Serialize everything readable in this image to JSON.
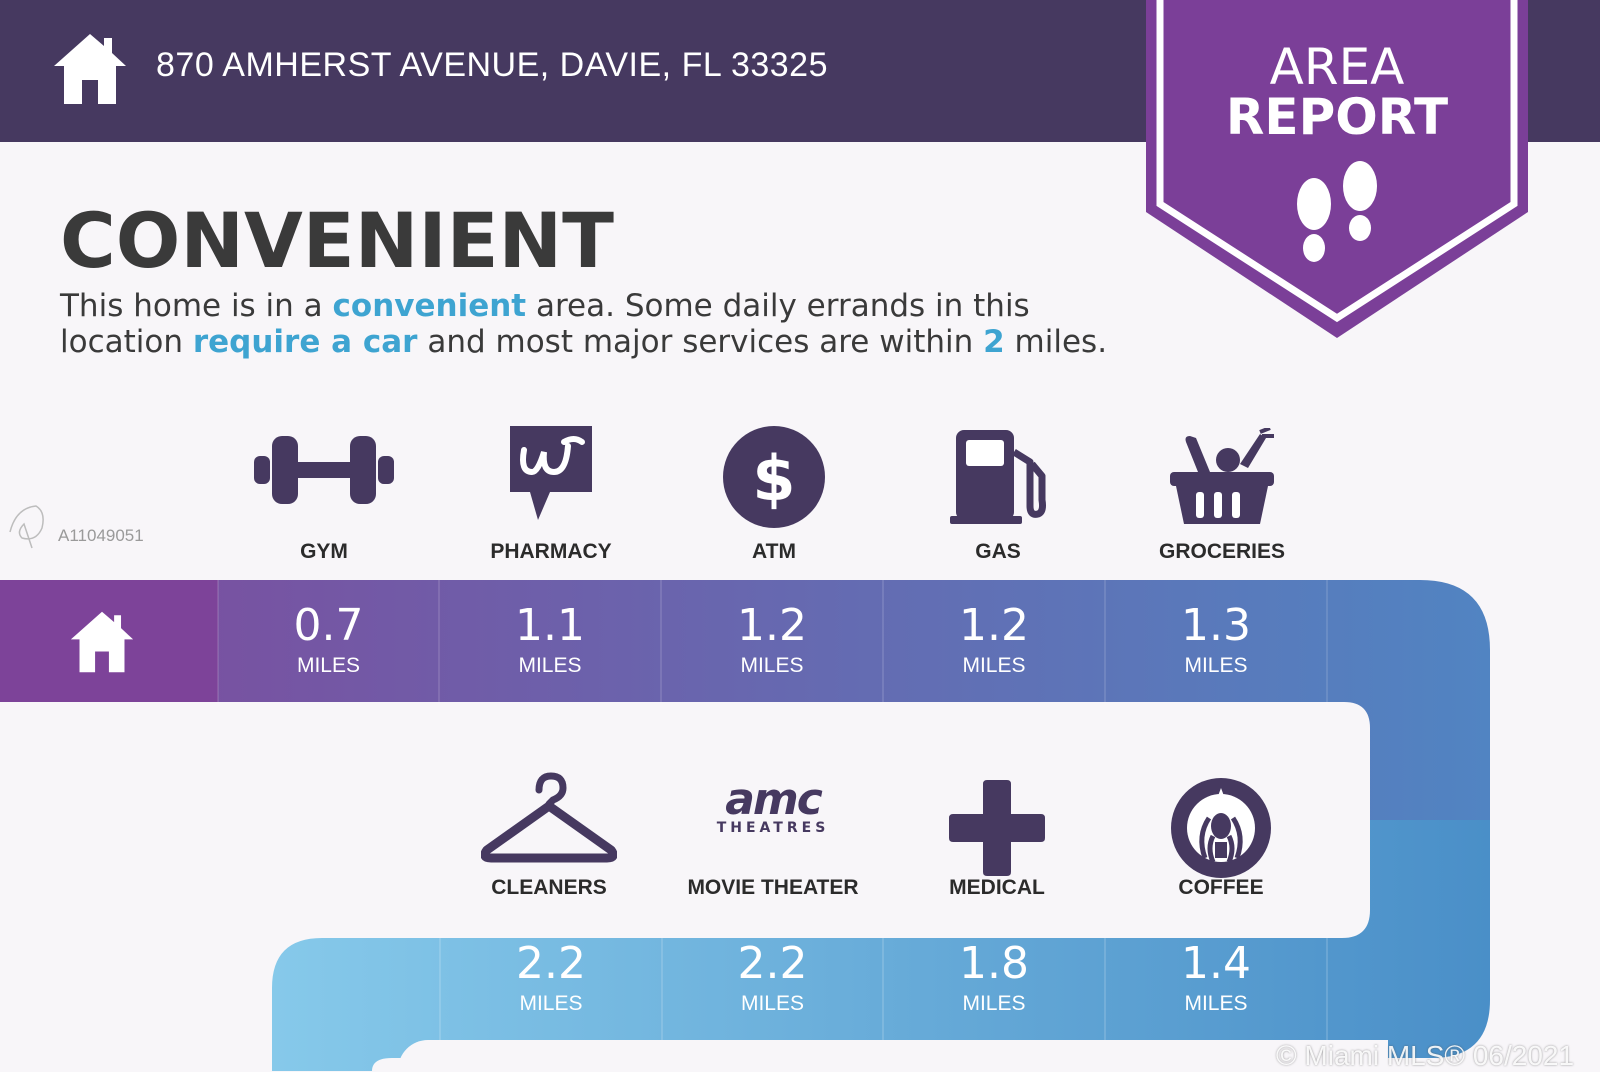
{
  "header": {
    "address": "870 AMHERST AVENUE, DAVIE, FL 33325",
    "badge_line1": "AREA",
    "badge_line2": "REPORT"
  },
  "title": "CONVENIENT",
  "description": {
    "part1": "This home is in a ",
    "hl1": "convenient",
    "part2": " area. Some daily errands in this location ",
    "hl2": "require a car",
    "part3": " and most major services are within ",
    "hl3": "2",
    "part4": " miles."
  },
  "watermark": {
    "id": "A11049051",
    "copyright": "© Miami MLS® 06/2021"
  },
  "amenities_row1": [
    {
      "label": "GYM",
      "distance": "0.7",
      "unit": "MILES",
      "icon": "dumbbell-icon"
    },
    {
      "label": "PHARMACY",
      "distance": "1.1",
      "unit": "MILES",
      "icon": "walgreens-logo"
    },
    {
      "label": "ATM",
      "distance": "1.2",
      "unit": "MILES",
      "icon": "dollar-icon"
    },
    {
      "label": "GAS",
      "distance": "1.2",
      "unit": "MILES",
      "icon": "gas-pump-icon"
    },
    {
      "label": "GROCERIES",
      "distance": "1.3",
      "unit": "MILES",
      "icon": "grocery-basket-icon"
    }
  ],
  "amenities_row2": [
    {
      "label": "CLEANERS",
      "distance": "2.2",
      "unit": "MILES",
      "icon": "hanger-icon"
    },
    {
      "label": "MOVIE THEATER",
      "distance": "2.2",
      "unit": "MILES",
      "icon": "amc-logo"
    },
    {
      "label": "MEDICAL",
      "distance": "1.8",
      "unit": "MILES",
      "icon": "medical-cross-icon"
    },
    {
      "label": "COFFEE",
      "distance": "1.4",
      "unit": "MILES",
      "icon": "starbucks-logo"
    }
  ],
  "amc_logo": {
    "line1": "amc",
    "line2": "THEATRES"
  },
  "colors": {
    "header": "#463960",
    "badge": "#7b3f98",
    "icon": "#463960",
    "highlight": "#3ea4d1"
  }
}
